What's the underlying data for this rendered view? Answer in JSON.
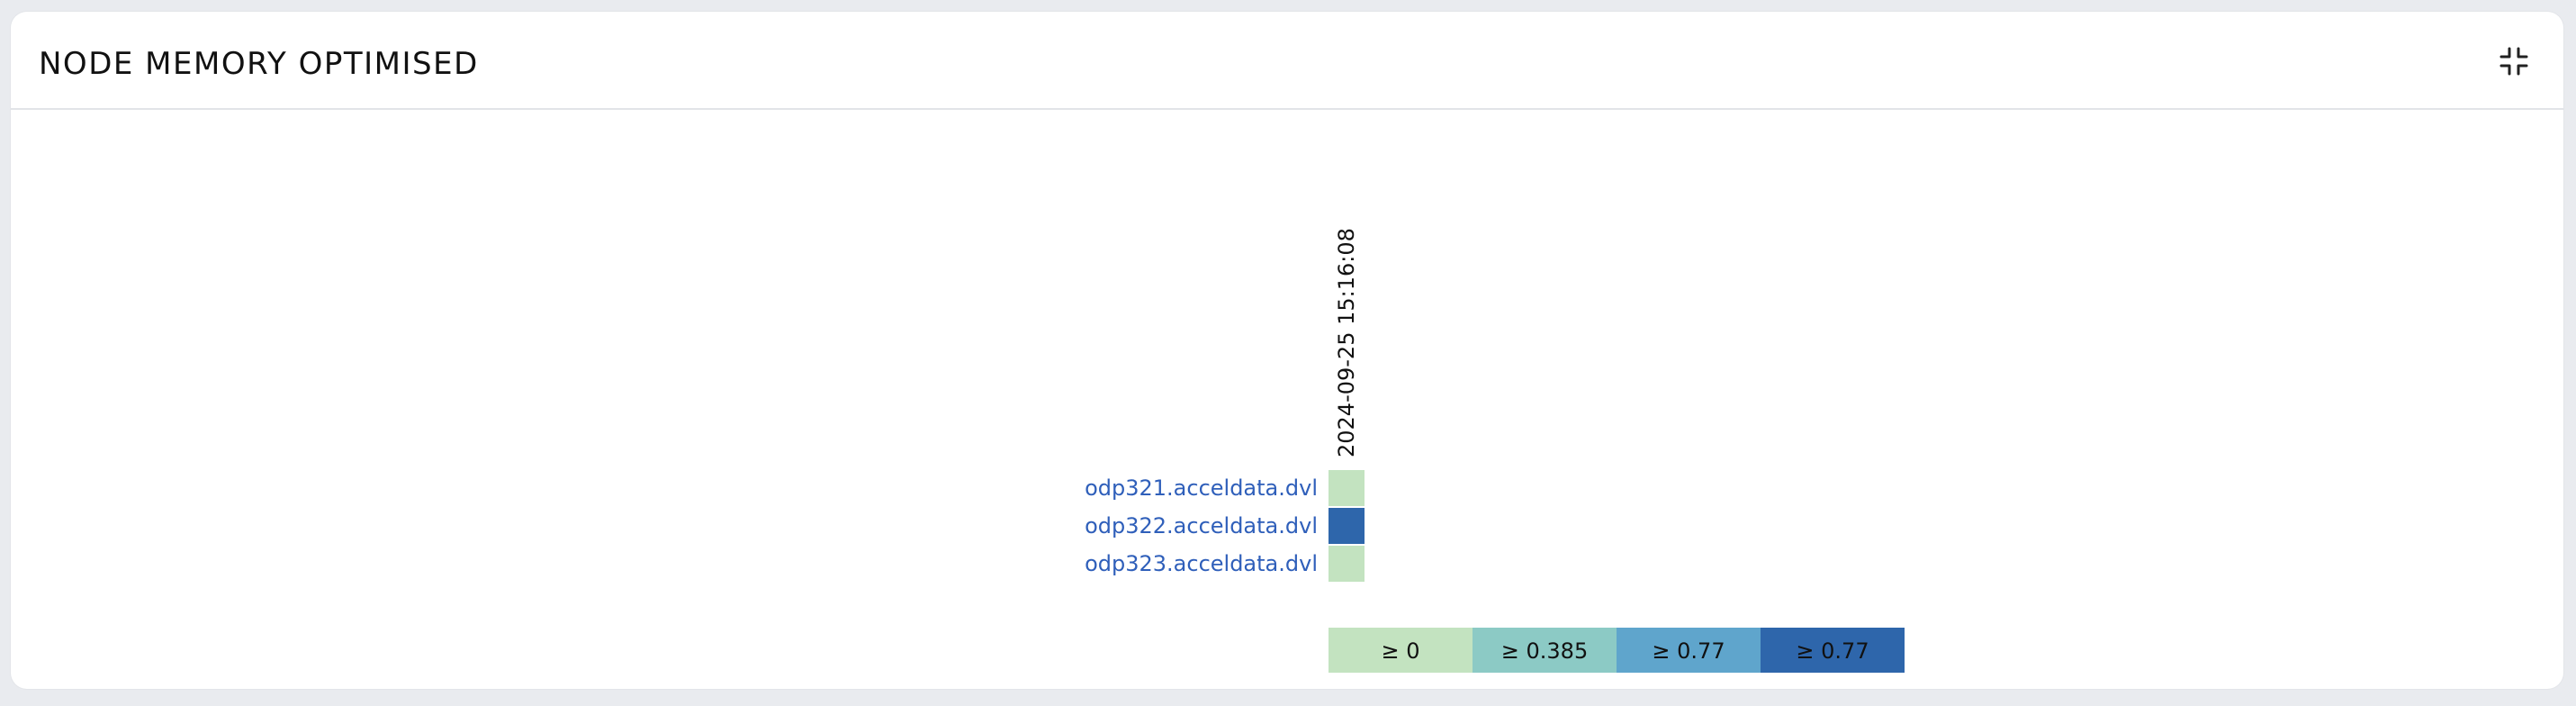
{
  "panel": {
    "title": "NODE MEMORY OPTIMISED",
    "collapse_icon": "collapse-icon"
  },
  "chart_data": {
    "type": "heatmap",
    "title": "",
    "x": [
      "2024-09-25 15:16:08"
    ],
    "y": [
      "odp321.acceldata.dvl",
      "odp322.acceldata.dvl",
      "odp323.acceldata.dvl"
    ],
    "values": [
      [
        0
      ],
      [
        1
      ],
      [
        0
      ]
    ],
    "legend": {
      "placement": "bottom",
      "bins": [
        {
          "label": "≥ 0",
          "min": 0,
          "color": "#c3e3c0"
        },
        {
          "label": "≥ 0.385",
          "min": 0.385,
          "color": "#8ccac5"
        },
        {
          "label": "≥ 0.77",
          "min": 0.77,
          "color": "#5fa5cc"
        },
        {
          "label": "≥ 0.77",
          "min": 0.77,
          "color": "#2e66ab"
        }
      ]
    },
    "colors": {
      "row_label": "#2f5fba",
      "cell_text": "#111111"
    }
  }
}
